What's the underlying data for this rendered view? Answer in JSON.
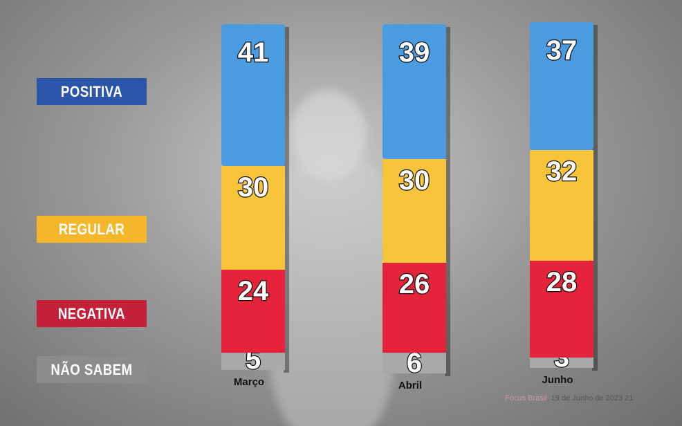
{
  "chart_data": {
    "type": "bar",
    "stacked": true,
    "categories": [
      "Março",
      "Abril",
      "Junho"
    ],
    "series": [
      {
        "name": "NÃO SABEM",
        "values": [
          5,
          6,
          3
        ],
        "color": "#a9a9a9",
        "legend_color": "#8c8c8c"
      },
      {
        "name": "NEGATIVA",
        "values": [
          24,
          26,
          28
        ],
        "color": "#e5233a",
        "legend_color": "#c3213a"
      },
      {
        "name": "REGULAR",
        "values": [
          30,
          30,
          32
        ],
        "color": "#f8c43a",
        "legend_color": "#f4b72c"
      },
      {
        "name": "POSITIVA",
        "values": [
          41,
          39,
          37
        ],
        "color": "#4b9be0",
        "legend_color": "#2b55a8"
      }
    ],
    "legend_placement": "left",
    "grid": false
  },
  "source": {
    "brand": "Focus Brasil",
    "text": ", 19 de Junho de 2023 21"
  }
}
